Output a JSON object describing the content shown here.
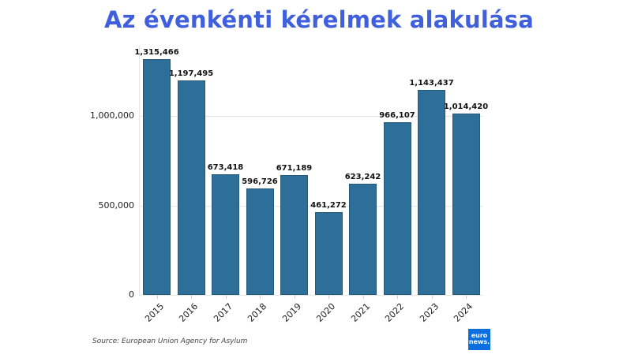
{
  "header": {
    "title": "Az évenkénti kérelmek alakulása"
  },
  "footer": {
    "source": "Source: European Union Agency for Asylum",
    "logo_line1": "euro",
    "logo_line2": "news."
  },
  "colors": {
    "title": "#3f5fdc",
    "bar": "#2e6f9a",
    "logo_bg": "#0b6fe0"
  },
  "chart_data": {
    "type": "bar",
    "title": "Az évenkénti kérelmek alakulása",
    "xlabel": "",
    "ylabel": "",
    "categories": [
      "2015",
      "2016",
      "2017",
      "2018",
      "2019",
      "2020",
      "2021",
      "2022",
      "2023",
      "2024"
    ],
    "values": [
      1315466,
      1197495,
      673418,
      596726,
      671189,
      461272,
      623242,
      966107,
      1143437,
      1014420
    ],
    "value_labels": [
      "1,315,466",
      "1,197,495",
      "673,418",
      "596,726",
      "671,189",
      "461,272",
      "623,242",
      "966,107",
      "1,143,437",
      "1,014,420"
    ],
    "yticks": [
      0,
      500000,
      1000000
    ],
    "ytick_labels": [
      "0",
      "500,000",
      "1,000,000"
    ],
    "ylim": [
      0,
      1350000
    ],
    "grid": true,
    "legend": "none",
    "source": "Source: European Union Agency for Asylum"
  }
}
